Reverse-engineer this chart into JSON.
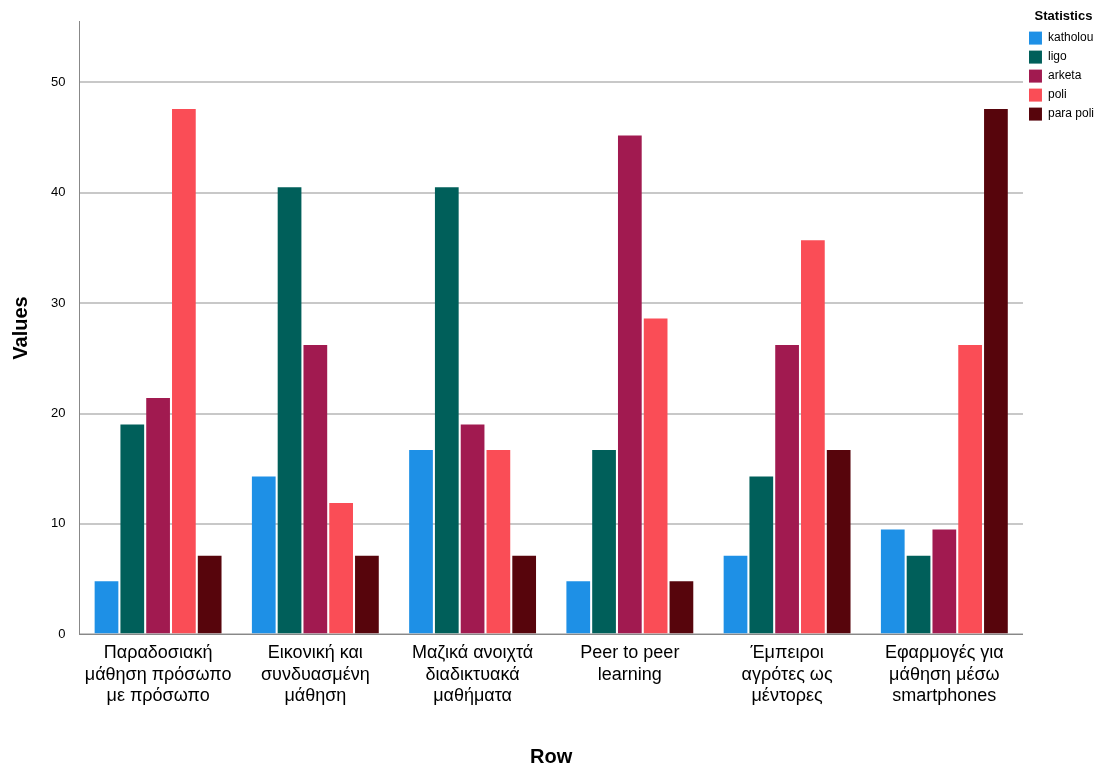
{
  "chart_data": {
    "type": "bar",
    "xlabel": "Row",
    "ylabel": "Values",
    "legend_title": "Statistics",
    "legend": "top right",
    "grid": "y",
    "categories": [
      "Παραδοσιακή μάθηση πρόσωπο με πρόσωπο",
      "Εικονική και συνδυασμένη μάθηση",
      "Μαζικά ανοιχτά διαδικτυακά μαθήματα",
      "Peer to peer learning",
      "Έμπειροι αγρότες ως μέντορες",
      "Εφαρμογές για μάθηση μέσω smartphones"
    ],
    "series": [
      {
        "name": "katholou",
        "color": "#1e90e6",
        "values": [
          4.8,
          14.3,
          16.7,
          4.8,
          7.1,
          9.5
        ]
      },
      {
        "name": "ligo",
        "color": "#005f5a",
        "values": [
          19.0,
          40.5,
          40.5,
          16.7,
          14.3,
          7.1
        ]
      },
      {
        "name": "arketa",
        "color": "#a11a50",
        "values": [
          21.4,
          26.2,
          19.0,
          45.2,
          26.2,
          9.5
        ]
      },
      {
        "name": "poli",
        "color": "#fa4d56",
        "values": [
          47.6,
          11.9,
          16.7,
          28.6,
          35.7,
          26.2
        ]
      },
      {
        "name": "para poli",
        "color": "#57050c",
        "values": [
          7.1,
          7.1,
          7.1,
          4.8,
          16.7,
          47.6
        ]
      }
    ],
    "ylim": [
      0,
      55.5
    ],
    "yticks": [
      0,
      10,
      20,
      30,
      40,
      50
    ]
  }
}
